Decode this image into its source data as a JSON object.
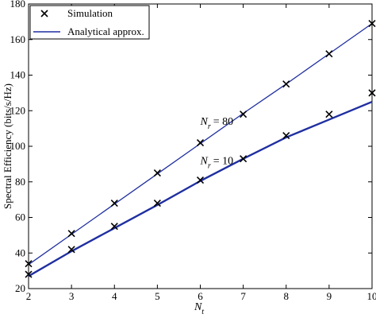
{
  "chart_data": {
    "type": "line",
    "xlabel": "N",
    "xlabel_sub": "t",
    "ylabel": "Spectral Efficiency (bits/s/Hz)",
    "xlim": [
      2,
      10
    ],
    "ylim": [
      20,
      180
    ],
    "xticks": [
      2,
      3,
      4,
      5,
      6,
      7,
      8,
      9,
      10
    ],
    "yticks": [
      20,
      40,
      60,
      80,
      100,
      120,
      140,
      160,
      180
    ],
    "grid": false,
    "legend": {
      "placement": "top-left",
      "entries": [
        {
          "marker": "x",
          "label": "Simulation"
        },
        {
          "marker": "line",
          "label": "Analytical approx."
        }
      ]
    },
    "line_color": "#1f2fa0",
    "marker_color": "#000000",
    "series": [
      {
        "name": "Nr = 80",
        "annotation": {
          "main": "N",
          "sub": "r",
          "rest": "= 80"
        },
        "x": [
          2,
          3,
          4,
          5,
          6,
          7,
          8,
          9,
          10
        ],
        "simulation": [
          34,
          51,
          68,
          85,
          102,
          118,
          135,
          152,
          169
        ],
        "analytical": [
          33.5,
          50.5,
          67.5,
          84.5,
          101.5,
          118.5,
          135,
          152,
          169
        ]
      },
      {
        "name": "Nr = 10",
        "annotation": {
          "main": "N",
          "sub": "r",
          "rest": "= 10"
        },
        "x": [
          2,
          3,
          4,
          5,
          6,
          7,
          8,
          9,
          10
        ],
        "simulation": [
          28,
          42,
          55,
          68,
          81,
          93,
          106,
          118,
          130
        ],
        "analytical": [
          27,
          41,
          54,
          67,
          80.5,
          93,
          105,
          115,
          125
        ]
      }
    ]
  }
}
